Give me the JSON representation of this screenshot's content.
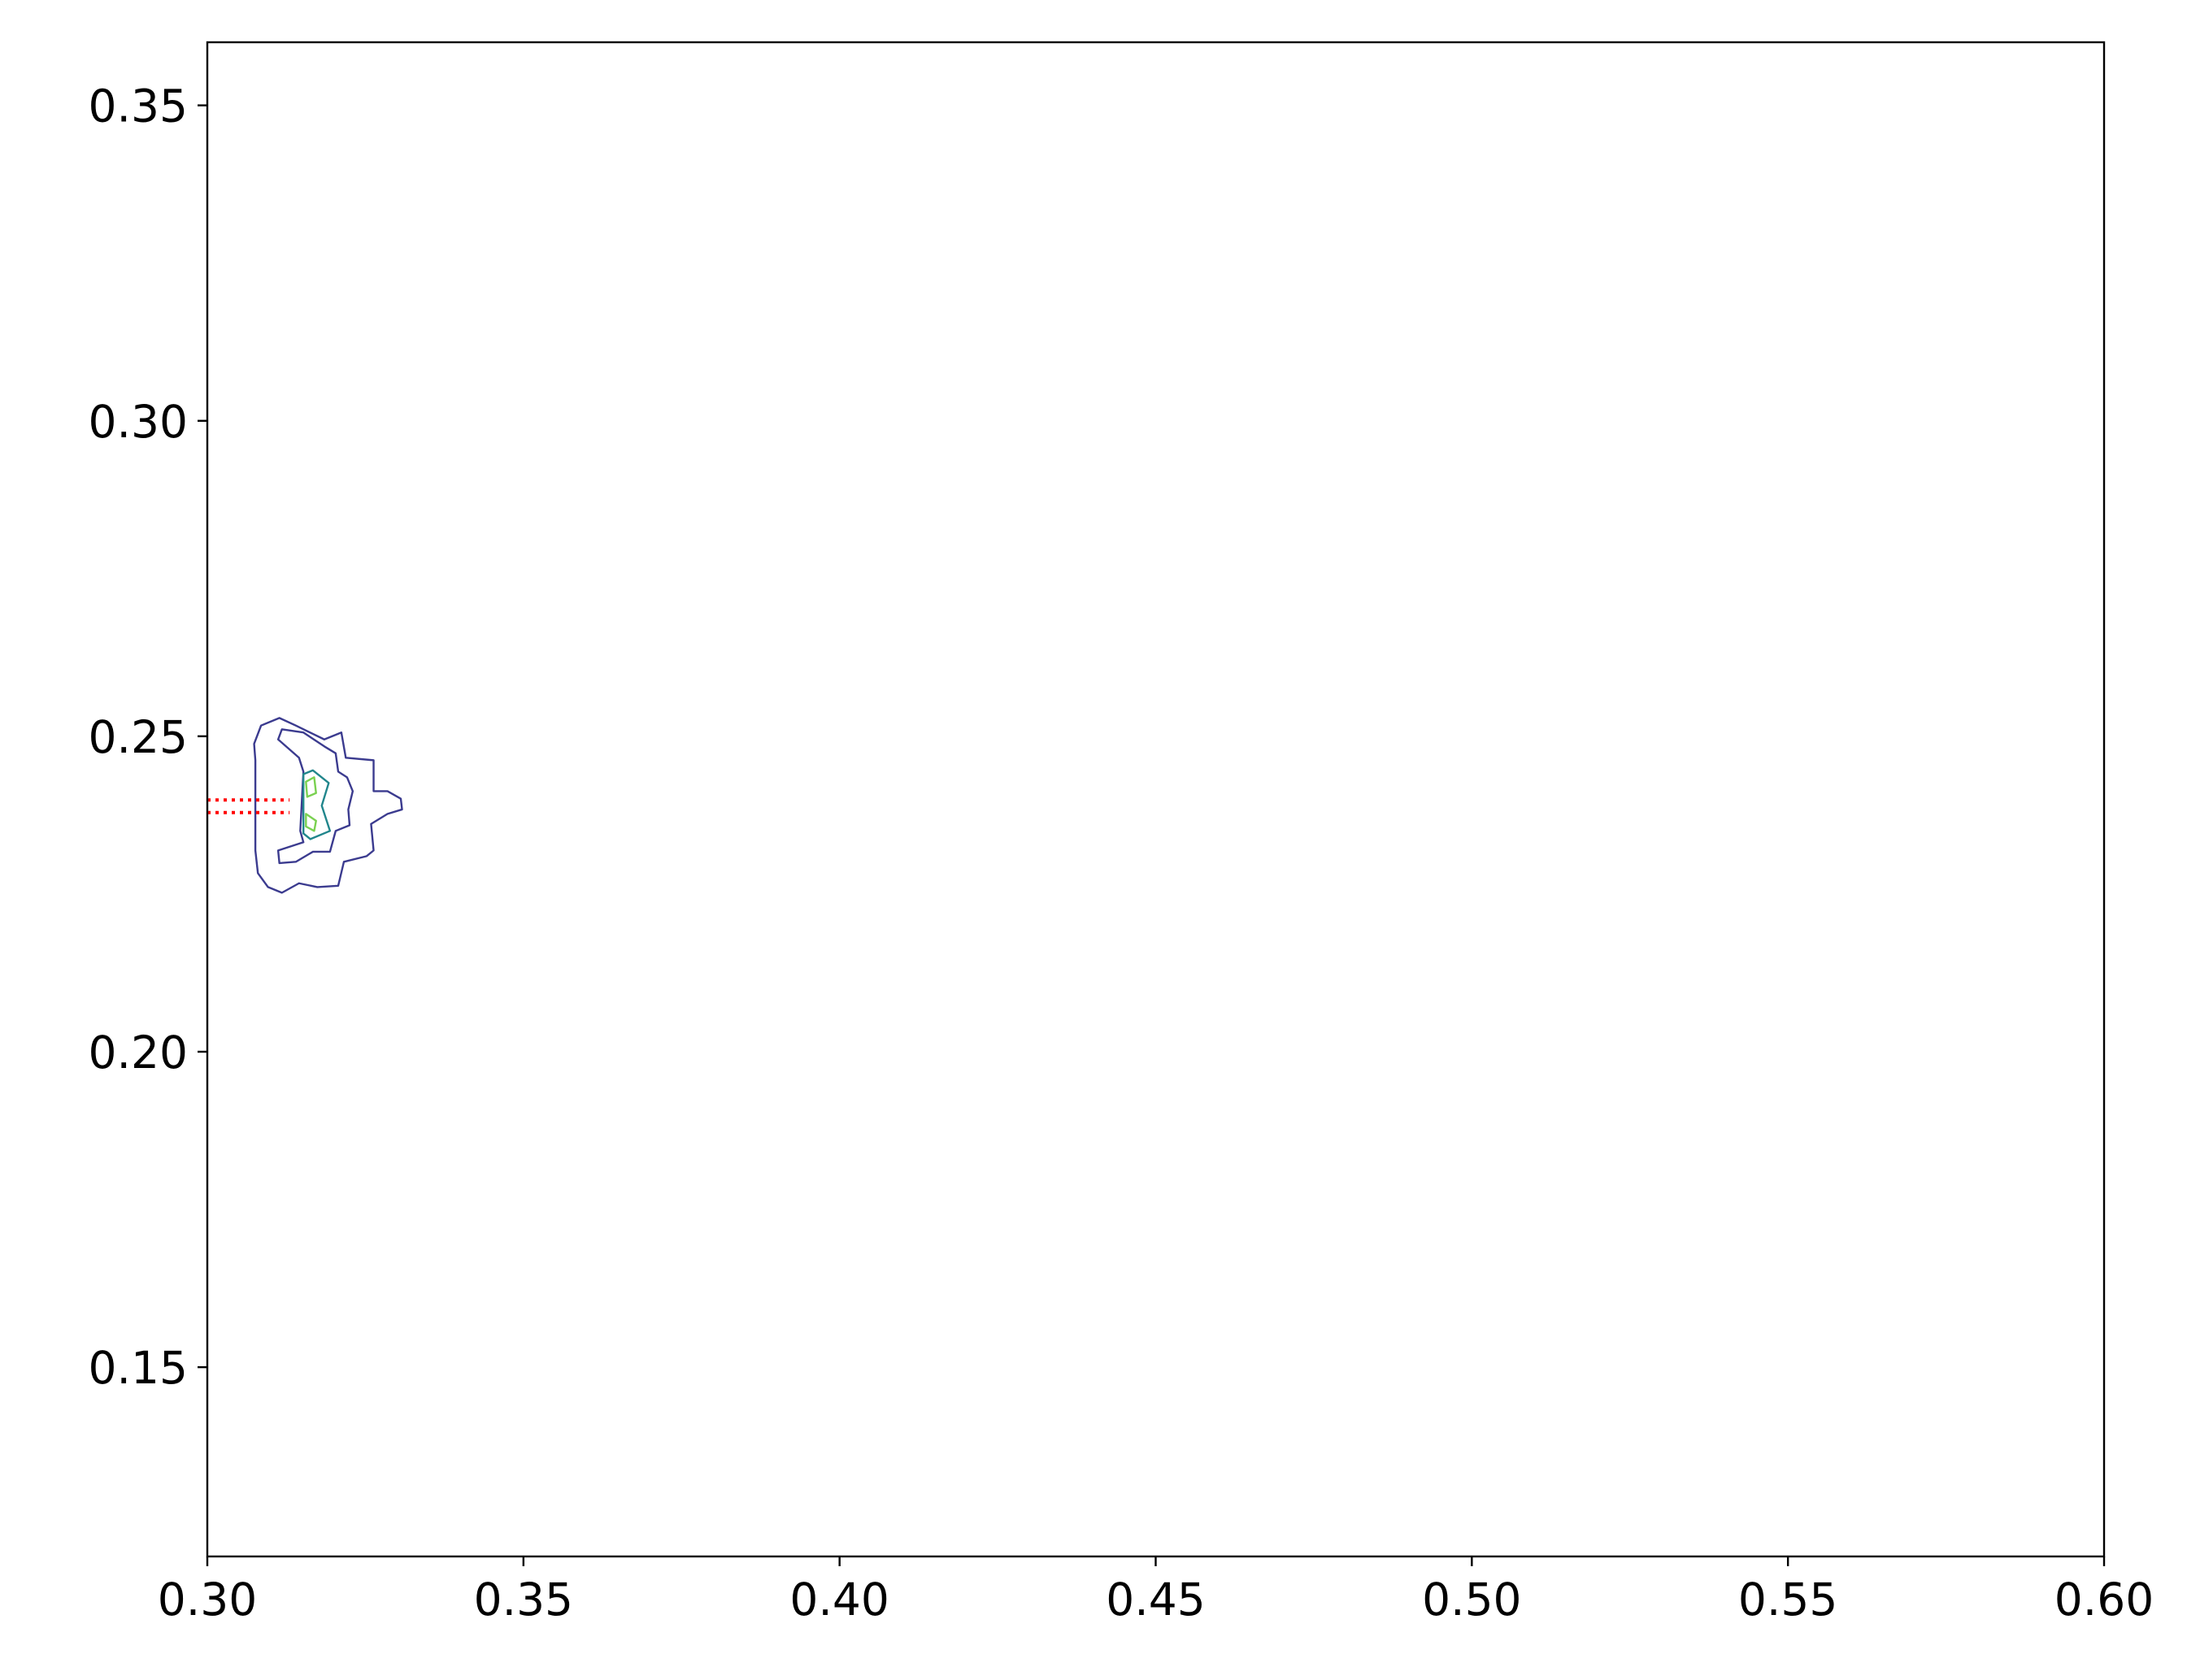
{
  "chart_data": {
    "type": "contour",
    "xlim": [
      0.3,
      0.6
    ],
    "ylim": [
      0.12,
      0.36
    ],
    "xticks": [
      {
        "value": 0.3,
        "label": "0.30"
      },
      {
        "value": 0.35,
        "label": "0.35"
      },
      {
        "value": 0.4,
        "label": "0.40"
      },
      {
        "value": 0.45,
        "label": "0.45"
      },
      {
        "value": 0.5,
        "label": "0.50"
      },
      {
        "value": 0.55,
        "label": "0.55"
      },
      {
        "value": 0.6,
        "label": "0.60"
      }
    ],
    "yticks": [
      {
        "value": 0.15,
        "label": "0.15"
      },
      {
        "value": 0.2,
        "label": "0.20"
      },
      {
        "value": 0.25,
        "label": "0.25"
      },
      {
        "value": 0.3,
        "label": "0.30"
      },
      {
        "value": 0.35,
        "label": "0.35"
      }
    ],
    "grid": false,
    "series": [
      {
        "color": "#3b3b8f",
        "closed": true,
        "x": [
          0.3076,
          0.308,
          0.3096,
          0.3118,
          0.3145,
          0.3174,
          0.3207,
          0.3216,
          0.3252,
          0.3263,
          0.3259,
          0.3285,
          0.3308,
          0.3306,
          0.3285,
          0.3263,
          0.3263,
          0.3219,
          0.3212,
          0.3185,
          0.314,
          0.3114,
          0.3085,
          0.3074,
          0.3076
        ],
        "y": [
          0.2319,
          0.2283,
          0.2261,
          0.2252,
          0.2267,
          0.2261,
          0.2263,
          0.2301,
          0.231,
          0.2319,
          0.2361,
          0.2377,
          0.2384,
          0.2401,
          0.2413,
          0.2413,
          0.2462,
          0.2466,
          0.2506,
          0.2495,
          0.2517,
          0.2529,
          0.2517,
          0.2488,
          0.2462
        ]
      },
      {
        "color": "#3b3b8f",
        "closed": true,
        "x": [
          0.3112,
          0.3145,
          0.3152,
          0.3147,
          0.3152,
          0.3112,
          0.3114,
          0.314,
          0.3167,
          0.3194,
          0.3203,
          0.3225,
          0.3223,
          0.323,
          0.3221,
          0.3207,
          0.3203,
          0.3185,
          0.3152,
          0.3118
        ],
        "y": [
          0.2495,
          0.2466,
          0.2444,
          0.235,
          0.2332,
          0.2319,
          0.2299,
          0.2301,
          0.2317,
          0.2317,
          0.235,
          0.2359,
          0.2384,
          0.2413,
          0.2435,
          0.2444,
          0.2473,
          0.2484,
          0.2506,
          0.2511
        ]
      },
      {
        "color": "#21868c",
        "closed": true,
        "x": [
          0.3152,
          0.3167,
          0.3192,
          0.3181,
          0.3194,
          0.3163,
          0.3152,
          0.3152
        ],
        "y": [
          0.244,
          0.2446,
          0.2426,
          0.239,
          0.235,
          0.2337,
          0.2346,
          0.2395
        ]
      },
      {
        "color": "#7ad151",
        "closed": true,
        "x": [
          0.3156,
          0.3169,
          0.3172,
          0.3158
        ],
        "y": [
          0.2428,
          0.2435,
          0.241,
          0.2404
        ]
      },
      {
        "color": "#7ad151",
        "closed": true,
        "x": [
          0.3156,
          0.3172,
          0.3169,
          0.3156
        ],
        "y": [
          0.2377,
          0.2366,
          0.235,
          0.2357
        ]
      },
      {
        "color": "#ff0000",
        "linestyle": "dotted",
        "x": [
          0.3,
          0.313
        ],
        "y": [
          0.2399,
          0.2399
        ]
      },
      {
        "color": "#ff0000",
        "linestyle": "dotted",
        "x": [
          0.3,
          0.313
        ],
        "y": [
          0.2379,
          0.2379
        ]
      }
    ]
  }
}
